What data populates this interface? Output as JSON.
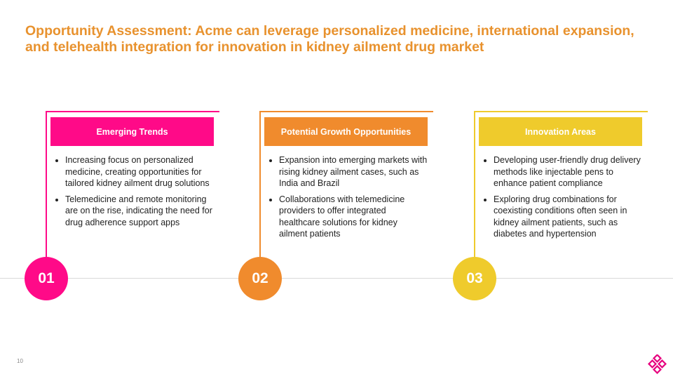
{
  "title": "Opportunity Assessment: Acme can leverage personalized medicine, international expansion, and telehealth integration for innovation in kidney ailment drug market",
  "columns": [
    {
      "header": "Emerging Trends",
      "color": "#ff0a88",
      "number": "01",
      "bullets": [
        "Increasing focus on personalized medicine, creating opportunities for tailored kidney ailment drug solutions",
        "Telemedicine and remote monitoring are on the rise, indicating the need for drug adherence support apps"
      ]
    },
    {
      "header": "Potential Growth Opportunities",
      "color": "#f08b2d",
      "number": "02",
      "bullets": [
        "Expansion into emerging markets with rising kidney ailment cases, such as India and Brazil",
        "Collaborations with telemedicine providers to offer integrated healthcare solutions for kidney ailment patients"
      ]
    },
    {
      "header": "Innovation Areas",
      "color": "#efcb2c",
      "number": "03",
      "bullets": [
        "Developing user-friendly drug delivery methods like injectable pens to enhance patient compliance",
        "Exploring drug combinations for coexisting conditions often seen in kidney ailment patients, such as diabetes and hypertension"
      ]
    }
  ],
  "page_number": "10"
}
